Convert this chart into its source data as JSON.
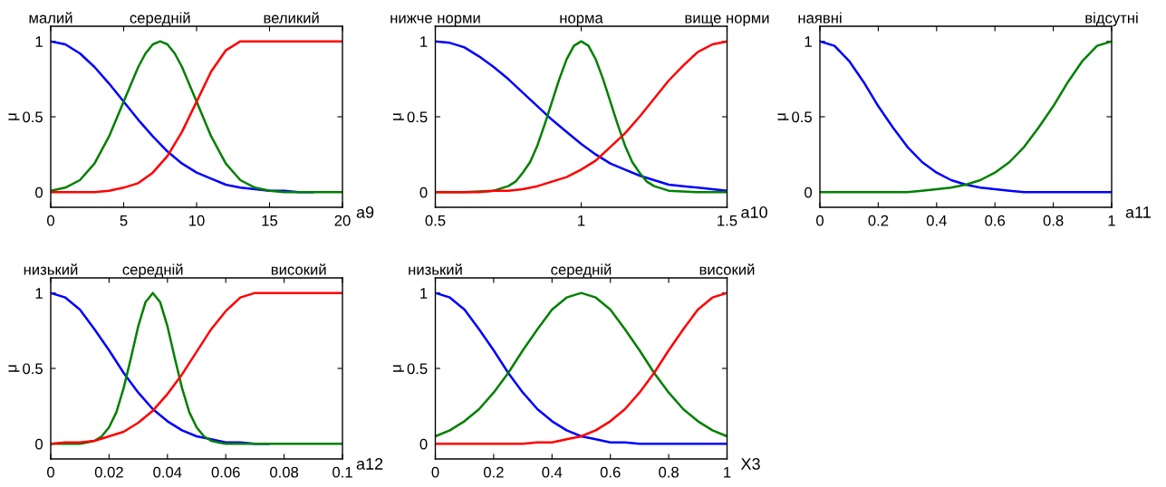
{
  "chart_data": [
    {
      "type": "line",
      "xlabel": "a9",
      "ylabel": "μ",
      "line_style": "solid",
      "xlim": [
        0,
        20
      ],
      "ylim": [
        -0.1,
        1.1
      ],
      "xticks": [
        0,
        5,
        10,
        15,
        20
      ],
      "yticks": [
        0,
        0.5,
        1
      ],
      "x": [
        0,
        1,
        2,
        3,
        4,
        5,
        6,
        7,
        8,
        9,
        10,
        11,
        12,
        13,
        14,
        15,
        16,
        17,
        18,
        19,
        20
      ],
      "series": [
        {
          "name": "малий",
          "color": "#0000ff",
          "values": [
            1,
            0.98,
            0.92,
            0.83,
            0.72,
            0.6,
            0.48,
            0.37,
            0.27,
            0.19,
            0.13,
            0.09,
            0.05,
            0.03,
            0.02,
            0.01,
            0.01,
            0,
            0,
            null,
            null
          ]
        },
        {
          "name": "середній",
          "color": "#008000",
          "x": [
            0,
            1,
            2,
            3,
            4,
            5,
            6,
            6.5,
            7,
            7.5,
            8,
            8.5,
            9,
            10,
            11,
            12,
            13,
            14,
            15,
            16,
            17,
            18,
            19,
            20
          ],
          "values": [
            0.01,
            0.03,
            0.08,
            0.19,
            0.37,
            0.6,
            0.83,
            0.92,
            0.98,
            1,
            0.98,
            0.92,
            0.83,
            0.6,
            0.37,
            0.19,
            0.08,
            0.03,
            0.01,
            0,
            0,
            0,
            0,
            0
          ]
        },
        {
          "name": "великий",
          "color": "#ff0000",
          "values": [
            0,
            0,
            0,
            0,
            0.01,
            0.03,
            0.06,
            0.13,
            0.24,
            0.4,
            0.6,
            0.8,
            0.94,
            1,
            1,
            1,
            1,
            1,
            1,
            1,
            1
          ]
        }
      ]
    },
    {
      "type": "line",
      "xlabel": "a10",
      "ylabel": "μ",
      "line_style": "solid",
      "xlim": [
        0.5,
        1.5
      ],
      "ylim": [
        -0.1,
        1.1
      ],
      "xticks": [
        0.5,
        1,
        1.5
      ],
      "yticks": [
        0,
        0.5,
        1
      ],
      "x": [
        0.5,
        0.55,
        0.6,
        0.65,
        0.7,
        0.75,
        0.8,
        0.85,
        0.9,
        0.95,
        1,
        1.05,
        1.1,
        1.15,
        1.2,
        1.25,
        1.3,
        1.35,
        1.4,
        1.45,
        1.5
      ],
      "series": [
        {
          "name": "нижче норми",
          "color": "#0000ff",
          "values": [
            1,
            0.99,
            0.96,
            0.9,
            0.83,
            0.75,
            0.66,
            0.57,
            0.48,
            0.4,
            0.32,
            0.25,
            0.19,
            0.15,
            0.11,
            0.08,
            0.05,
            0.04,
            0.03,
            0.02,
            0.01
          ]
        },
        {
          "name": "норма",
          "color": "#008000",
          "x": [
            0.5,
            0.6,
            0.7,
            0.75,
            0.775,
            0.8,
            0.825,
            0.85,
            0.875,
            0.9,
            0.925,
            0.95,
            0.975,
            1,
            1.025,
            1.05,
            1.075,
            1.1,
            1.125,
            1.15,
            1.175,
            1.2,
            1.225,
            1.25,
            1.3,
            1.4,
            1.5
          ],
          "values": [
            0,
            0,
            0.01,
            0.04,
            0.07,
            0.13,
            0.2,
            0.31,
            0.45,
            0.6,
            0.75,
            0.88,
            0.97,
            1,
            0.97,
            0.88,
            0.75,
            0.6,
            0.45,
            0.31,
            0.2,
            0.13,
            0.07,
            0.04,
            0.01,
            0,
            0
          ]
        },
        {
          "name": "вище норми",
          "color": "#ff0000",
          "values": [
            0,
            0,
            0,
            0,
            0.01,
            0.01,
            0.02,
            0.04,
            0.07,
            0.1,
            0.15,
            0.21,
            0.3,
            0.39,
            0.5,
            0.62,
            0.74,
            0.84,
            0.93,
            0.98,
            1
          ]
        }
      ]
    },
    {
      "type": "line",
      "xlabel": "a11",
      "ylabel": "μ",
      "line_style": "solid",
      "xlim": [
        0,
        1
      ],
      "ylim": [
        -0.1,
        1.1
      ],
      "xticks": [
        0,
        0.2,
        0.4,
        0.6,
        0.8,
        1
      ],
      "yticks": [
        0,
        0.5,
        1
      ],
      "x": [
        0,
        0.05,
        0.1,
        0.15,
        0.2,
        0.25,
        0.3,
        0.35,
        0.4,
        0.45,
        0.5,
        0.55,
        0.6,
        0.65,
        0.7,
        0.75,
        0.8,
        0.85,
        0.9,
        0.95,
        1
      ],
      "series": [
        {
          "name": "наявні",
          "color": "#0000ff",
          "values": [
            1,
            0.97,
            0.87,
            0.73,
            0.57,
            0.43,
            0.3,
            0.2,
            0.13,
            0.08,
            0.05,
            0.03,
            0.02,
            0.01,
            0,
            0,
            0,
            0,
            0,
            0,
            0
          ]
        },
        {
          "name": "відсутні",
          "color": "#008000",
          "values": [
            0,
            0,
            0,
            0,
            0,
            0,
            0,
            0.01,
            0.02,
            0.03,
            0.05,
            0.08,
            0.13,
            0.2,
            0.3,
            0.43,
            0.57,
            0.73,
            0.87,
            0.97,
            1
          ]
        }
      ]
    },
    {
      "type": "line",
      "xlabel": "a12",
      "ylabel": "μ",
      "line_style": "solid",
      "xlim": [
        0,
        0.1
      ],
      "ylim": [
        -0.1,
        1.1
      ],
      "xticks": [
        0,
        0.02,
        0.04,
        0.06,
        0.08,
        0.1
      ],
      "yticks": [
        0,
        0.5,
        1
      ],
      "x": [
        0,
        0.005,
        0.01,
        0.015,
        0.02,
        0.025,
        0.03,
        0.035,
        0.04,
        0.045,
        0.05,
        0.055,
        0.06,
        0.065,
        0.07,
        0.075,
        0.08,
        0.085,
        0.09,
        0.095,
        0.1
      ],
      "series": [
        {
          "name": "низький",
          "color": "#0000ff",
          "values": [
            1,
            0.97,
            0.89,
            0.76,
            0.62,
            0.47,
            0.34,
            0.23,
            0.15,
            0.09,
            0.05,
            0.03,
            0.01,
            0.01,
            0,
            0,
            null,
            null,
            null,
            null,
            null
          ]
        },
        {
          "name": "середній",
          "color": "#008000",
          "x": [
            0,
            0.005,
            0.01,
            0.0125,
            0.015,
            0.0175,
            0.02,
            0.0225,
            0.025,
            0.0275,
            0.03,
            0.0325,
            0.035,
            0.0375,
            0.04,
            0.0425,
            0.045,
            0.0475,
            0.05,
            0.0525,
            0.055,
            0.0575,
            0.06,
            0.07,
            0.08,
            0.09,
            0.1
          ],
          "values": [
            0,
            0,
            0,
            0.01,
            0.02,
            0.05,
            0.11,
            0.21,
            0.37,
            0.57,
            0.78,
            0.94,
            1,
            0.94,
            0.78,
            0.57,
            0.37,
            0.21,
            0.11,
            0.05,
            0.02,
            0.01,
            0,
            0,
            0,
            0,
            0
          ]
        },
        {
          "name": "високий",
          "color": "#ff0000",
          "values": [
            0,
            0.01,
            0.01,
            0.02,
            0.05,
            0.08,
            0.14,
            0.22,
            0.33,
            0.46,
            0.61,
            0.76,
            0.88,
            0.97,
            1,
            1,
            1,
            1,
            1,
            1,
            1
          ]
        }
      ]
    },
    {
      "type": "line",
      "xlabel": "X3",
      "ylabel": "μ",
      "line_style": "solid",
      "xlim": [
        0,
        1
      ],
      "ylim": [
        -0.1,
        1.1
      ],
      "xticks": [
        0,
        0.2,
        0.4,
        0.6,
        0.8,
        1
      ],
      "yticks": [
        0,
        0.5,
        1
      ],
      "x": [
        0,
        0.05,
        0.1,
        0.15,
        0.2,
        0.25,
        0.3,
        0.35,
        0.4,
        0.45,
        0.5,
        0.55,
        0.6,
        0.65,
        0.7,
        0.75,
        0.8,
        0.85,
        0.9,
        0.95,
        1
      ],
      "series": [
        {
          "name": "низький",
          "color": "#0000ff",
          "values": [
            1,
            0.97,
            0.89,
            0.76,
            0.62,
            0.47,
            0.34,
            0.23,
            0.15,
            0.09,
            0.05,
            0.03,
            0.01,
            0.01,
            0,
            0,
            0,
            0,
            0,
            0,
            0
          ]
        },
        {
          "name": "середній",
          "color": "#008000",
          "values": [
            0.05,
            0.09,
            0.15,
            0.23,
            0.34,
            0.47,
            0.62,
            0.76,
            0.89,
            0.97,
            1,
            0.97,
            0.89,
            0.76,
            0.62,
            0.47,
            0.34,
            0.23,
            0.15,
            0.09,
            0.05
          ]
        },
        {
          "name": "високий",
          "color": "#ff0000",
          "values": [
            0,
            0,
            0,
            0,
            0,
            0,
            0,
            0.01,
            0.01,
            0.03,
            0.05,
            0.09,
            0.15,
            0.23,
            0.34,
            0.47,
            0.62,
            0.76,
            0.89,
            0.97,
            1
          ]
        }
      ]
    }
  ]
}
